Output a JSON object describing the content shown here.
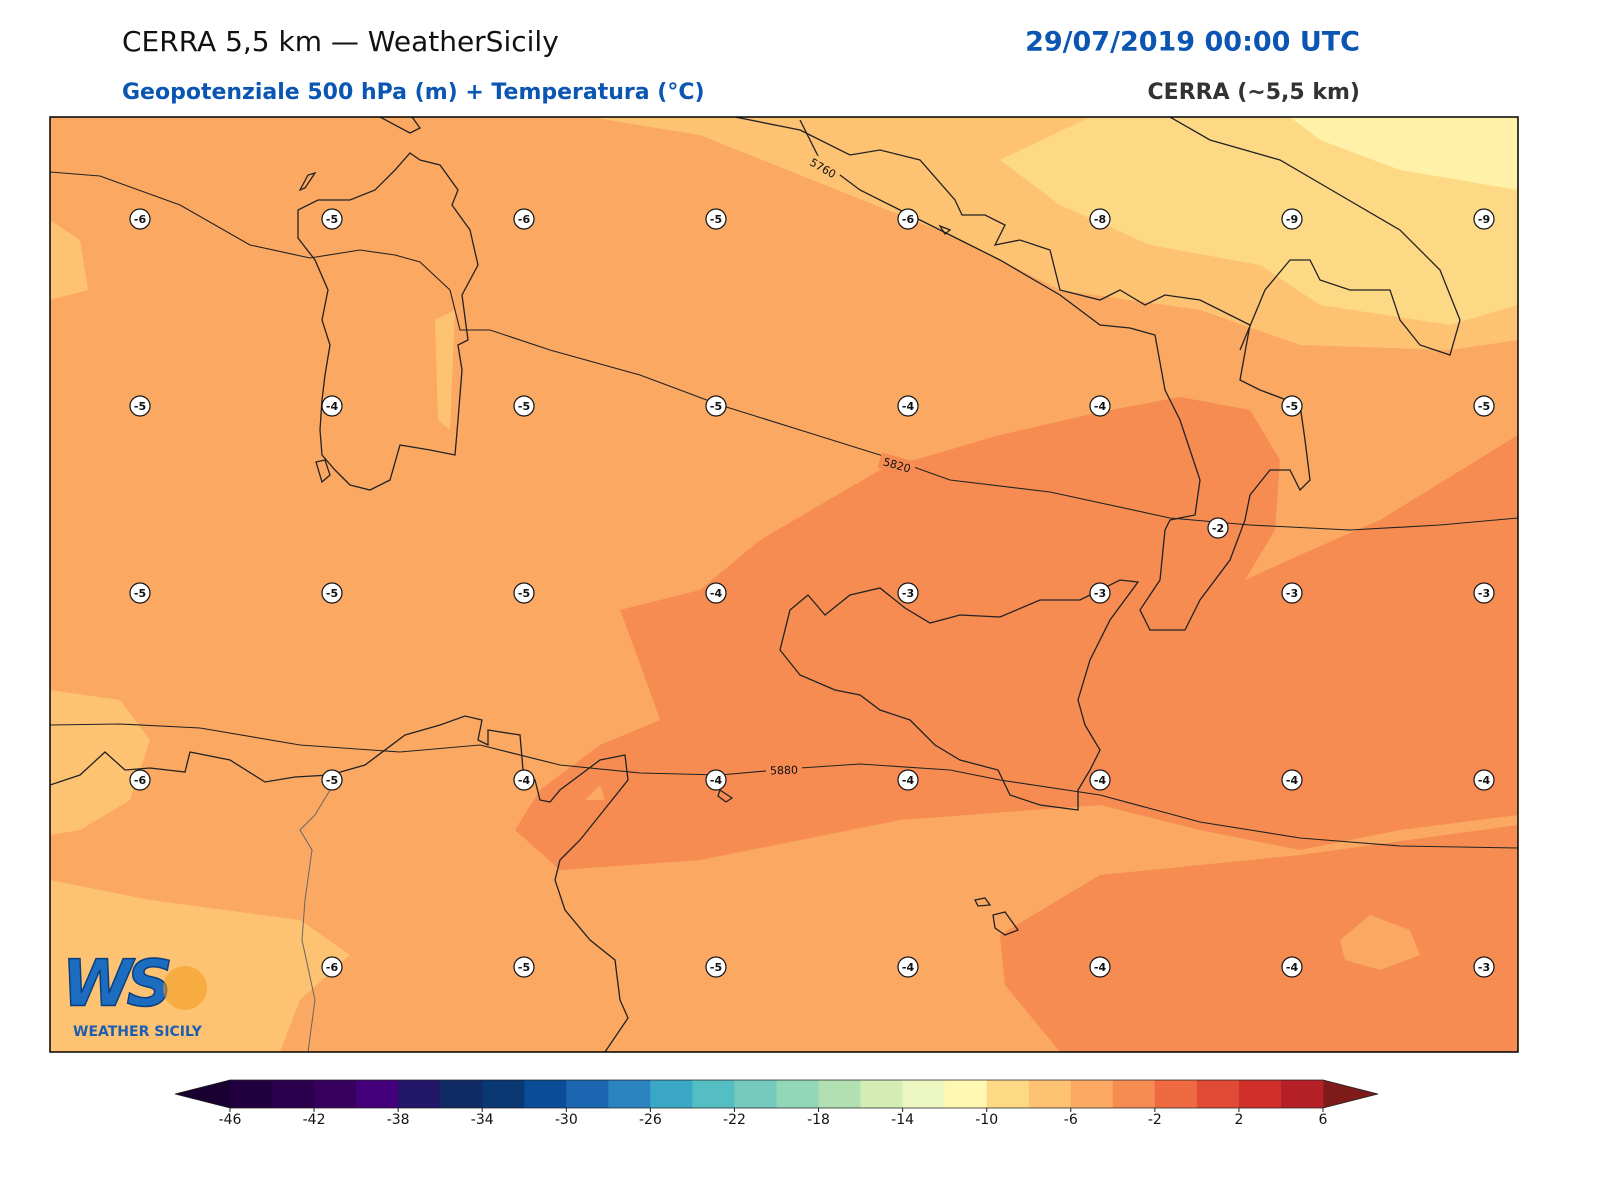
{
  "header": {
    "title": "CERRA 5,5 km — WeatherSicily",
    "datetime": "29/07/2019 00:00 UTC",
    "subtitle": "Geopotenziale 500 hPa (m) + Temperatura (°C)",
    "source": "CERRA (~5,5 km)"
  },
  "map": {
    "temperature_rows": [
      [
        -6,
        -5,
        -6,
        -5,
        -6,
        -8,
        -9,
        -9
      ],
      [
        -5,
        -4,
        -5,
        -5,
        -4,
        -4,
        -5,
        -5
      ],
      [
        -5,
        -5,
        -5,
        -4,
        -3,
        -3,
        -3,
        -3
      ],
      [
        -6,
        -5,
        -4,
        -4,
        -4,
        -4,
        -4,
        -4
      ],
      [
        -6,
        -5,
        -5,
        -4,
        -4,
        -4,
        -3
      ]
    ],
    "extra_temperature": -2,
    "contour_labels": [
      5760,
      5820,
      5880
    ]
  },
  "logo": {
    "mark": "WS",
    "text": "WEATHER SICILY"
  },
  "colorbar": {
    "ticks": [
      -46,
      -42,
      -38,
      -34,
      -30,
      -26,
      -22,
      -18,
      -14,
      -10,
      -6,
      -2,
      2,
      6
    ],
    "range": [
      -46,
      6
    ],
    "colors": [
      "#22003f",
      "#2a004c",
      "#37005f",
      "#43007a",
      "#231769",
      "#102b63",
      "#0a3873",
      "#0b4c97",
      "#1b66b1",
      "#2b84bf",
      "#3ba7c7",
      "#55bec3",
      "#73cabd",
      "#93d6b8",
      "#b3e0b2",
      "#d3edb5",
      "#ecf7c1",
      "#fff8b2",
      "#fed985",
      "#fdc272",
      "#fba862",
      "#f68c52",
      "#ef6a40",
      "#e14a34",
      "#d1302a",
      "#b51f26"
    ],
    "under_color": "#1a0030",
    "over_color": "#7d1a1a"
  }
}
